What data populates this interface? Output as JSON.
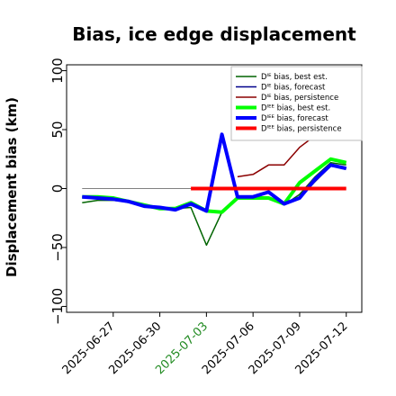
{
  "chart_data": {
    "type": "line",
    "title": "Bias, ice edge displacement",
    "ylabel": "Displacement bias (km)",
    "xlabel": "",
    "ylim": [
      -105,
      105
    ],
    "xlim": [
      "2025-06-24",
      "2025-07-13"
    ],
    "grid": false,
    "legend_placement": "top-right",
    "yticks": [
      100,
      50,
      0,
      -50,
      -100
    ],
    "ytick_labels": [
      "100",
      "50",
      "0",
      "−50",
      "−100"
    ],
    "xticks": [
      "2025-06-27",
      "2025-06-30",
      "2025-07-03",
      "2025-07-06",
      "2025-07-09",
      "2025-07-12"
    ],
    "xtick_labels": [
      "2025-06-27",
      "2025-06-30",
      "2025-07-03",
      "2025-07-06",
      "2025-07-09",
      "2025-07-12"
    ],
    "xtick_colors": [
      "#000000",
      "#000000",
      "#228B22",
      "#000000",
      "#000000",
      "#000000"
    ],
    "zero_line": {
      "x": [
        "2025-06-25",
        "2025-07-03"
      ],
      "y": [
        0,
        0
      ],
      "color": "#808080"
    },
    "series": [
      {
        "name": "Dᴵᴱ bias, best est.",
        "color": "#006400",
        "width": 1.5,
        "x": [
          "2025-06-25",
          "2025-06-26",
          "2025-06-27",
          "2025-06-28",
          "2025-06-29",
          "2025-06-30",
          "2025-07-01",
          "2025-07-02",
          "2025-07-03",
          "2025-07-04",
          "2025-07-05",
          "2025-07-06",
          "2025-07-07",
          "2025-07-08",
          "2025-07-09",
          "2025-07-10",
          "2025-07-11",
          "2025-07-12"
        ],
        "y": [
          -12,
          -10,
          -10,
          -11,
          -14,
          -17,
          -17,
          -16,
          -48,
          -20,
          -8,
          -8,
          -8,
          -14,
          -5,
          10,
          22,
          20
        ]
      },
      {
        "name": "Dᴵᴱ bias, forecast",
        "color": "#00008B",
        "width": 1.5,
        "x": [
          "2025-06-25",
          "2025-06-26",
          "2025-06-27",
          "2025-06-28",
          "2025-06-29",
          "2025-06-30",
          "2025-07-01",
          "2025-07-02",
          "2025-07-03",
          "2025-07-04",
          "2025-07-05",
          "2025-07-06",
          "2025-07-07",
          "2025-07-08",
          "2025-07-09",
          "2025-07-10",
          "2025-07-11",
          "2025-07-12"
        ],
        "y": [
          -7,
          -8,
          -9,
          -11,
          -15,
          -16,
          -18,
          -13,
          -19,
          45,
          -8,
          -8,
          -3,
          -14,
          -8,
          6,
          19,
          17
        ]
      },
      {
        "name": "Dᴵᴱ bias, persistence",
        "color": "#8B0000",
        "width": 1.5,
        "x": [
          "2025-07-05",
          "2025-07-06",
          "2025-07-07",
          "2025-07-08",
          "2025-07-09",
          "2025-07-10",
          "2025-07-11",
          "2025-07-12"
        ],
        "y": [
          10,
          12,
          20,
          20,
          35,
          45,
          48,
          43
        ]
      },
      {
        "name": "Dᴵᴱᴱ bias, best est.",
        "color": "#00FF00",
        "width": 4,
        "x": [
          "2025-06-25",
          "2025-06-26",
          "2025-06-27",
          "2025-06-28",
          "2025-06-29",
          "2025-06-30",
          "2025-07-01",
          "2025-07-02",
          "2025-07-03",
          "2025-07-04",
          "2025-07-05",
          "2025-07-06",
          "2025-07-07",
          "2025-07-08",
          "2025-07-09",
          "2025-07-10",
          "2025-07-11",
          "2025-07-12"
        ],
        "y": [
          -7,
          -7,
          -8,
          -11,
          -14,
          -17,
          -17,
          -12,
          -19,
          -20,
          -8,
          -8,
          -8,
          -13,
          5,
          15,
          25,
          22
        ]
      },
      {
        "name": "Dᴵᴱᴱ bias, forecast",
        "color": "#0000FF",
        "width": 4,
        "x": [
          "2025-06-25",
          "2025-06-26",
          "2025-06-27",
          "2025-06-28",
          "2025-06-29",
          "2025-06-30",
          "2025-07-01",
          "2025-07-02",
          "2025-07-03",
          "2025-07-04",
          "2025-07-05",
          "2025-07-06",
          "2025-07-07",
          "2025-07-08",
          "2025-07-09",
          "2025-07-10",
          "2025-07-11",
          "2025-07-12"
        ],
        "y": [
          -7,
          -8,
          -9,
          -11,
          -15,
          -16,
          -18,
          -13,
          -19,
          46,
          -7,
          -7,
          -3,
          -13,
          -8,
          8,
          20,
          17
        ]
      },
      {
        "name": "Dᴵᴱᴱ bias, persistence",
        "color": "#FF0000",
        "width": 4,
        "x": [
          "2025-07-02",
          "2025-07-12"
        ],
        "y": [
          0,
          0
        ]
      }
    ],
    "legend_entries": [
      {
        "label": "Dᴵᴱ bias, best est.",
        "color": "#006400",
        "width": 1.5
      },
      {
        "label": "Dᴵᴱ bias, forecast",
        "color": "#00008B",
        "width": 1.5
      },
      {
        "label": "Dᴵᴱ bias, persistence",
        "color": "#8B0000",
        "width": 1.5
      },
      {
        "label": "Dᴵᴱᴱ bias, best est.",
        "color": "#00FF00",
        "width": 4
      },
      {
        "label": "Dᴵᴱᴱ bias, forecast",
        "color": "#0000FF",
        "width": 4
      },
      {
        "label": "Dᴵᴱᴱ bias, persistence",
        "color": "#FF0000",
        "width": 4
      }
    ]
  }
}
